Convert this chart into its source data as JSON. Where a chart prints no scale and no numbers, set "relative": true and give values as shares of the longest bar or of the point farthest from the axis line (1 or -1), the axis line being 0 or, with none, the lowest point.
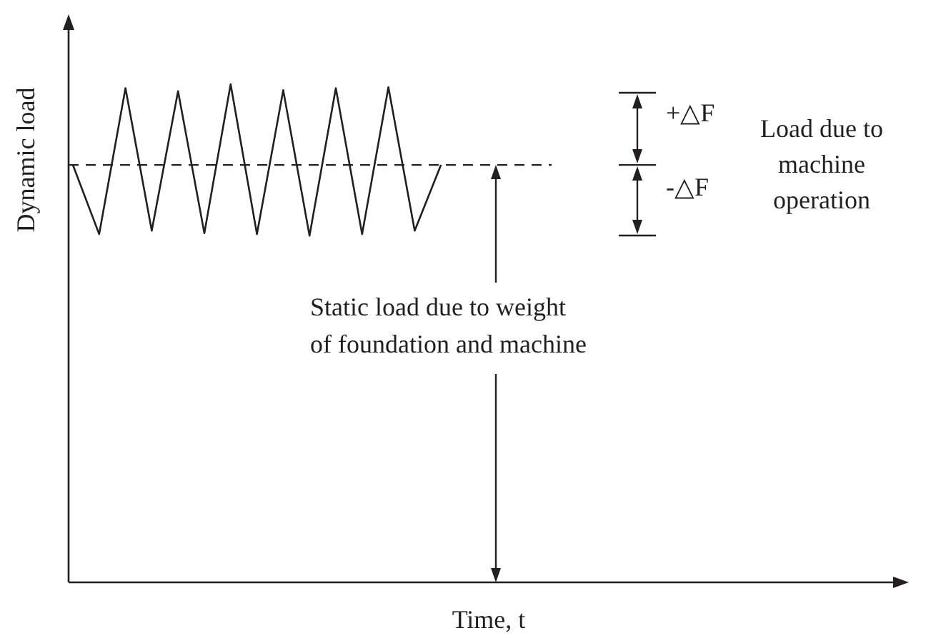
{
  "chart_data": {
    "type": "line",
    "relative": true,
    "xlabel": "Time, t",
    "ylabel": "Dynamic load",
    "categories": [
      null,
      null,
      null,
      null,
      null,
      null,
      null,
      null,
      null,
      null,
      null,
      null,
      null,
      null,
      null,
      null,
      null,
      null,
      null,
      null,
      null,
      null,
      null,
      null,
      null,
      null,
      null,
      null,
      null,
      null,
      null,
      null
    ],
    "series": [
      {
        "color": "#231f20",
        "values": [
          0.838,
          0.699,
          0.992,
          0.706,
          0.986,
          0.701,
          1,
          0.699,
          0.988,
          0.696,
          0.992,
          0.699,
          0.994,
          0.706,
          0.838,
          null,
          null,
          null,
          null,
          null,
          null,
          null,
          null,
          null,
          null,
          null,
          null,
          null,
          null,
          null,
          null,
          null
        ]
      }
    ],
    "ref_lines": [
      {
        "axis": "y",
        "value": 0.838,
        "line_style": "dashed",
        "color": "#231f20"
      }
    ],
    "annotations": [
      "Static load due to weight\nof foundation and machine",
      "+△F",
      "-△F",
      "Load due to\nmachine\noperation"
    ],
    "grid": false,
    "marker": "none",
    "line_style": "solid"
  }
}
